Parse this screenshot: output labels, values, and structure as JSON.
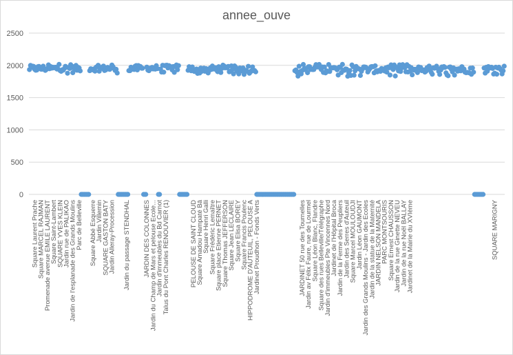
{
  "chart_data": {
    "type": "scatter",
    "title": "annee_ouve",
    "xlabel": "",
    "ylabel": "",
    "ylim": [
      0,
      2500
    ],
    "yticks": [
      0,
      500,
      1000,
      1500,
      2000,
      2500
    ],
    "grid": "horizontal",
    "legend": "none",
    "colors": {
      "marker": "#5b9bd5",
      "grid": "#d9d9d9",
      "text": "#595959"
    },
    "n_points": 450,
    "x_tick_labels": [
      {
        "i": 5,
        "label": "Square Laurent Prache"
      },
      {
        "i": 11,
        "label": "Square MARCEL RAJMAN"
      },
      {
        "i": 17,
        "label": "Promenade avenue EMILE LAURENT"
      },
      {
        "i": 23,
        "label": "Square Saint-Lambert"
      },
      {
        "i": 29,
        "label": "SQUARE YVES KLEIN"
      },
      {
        "i": 35,
        "label": "Jardin rue de PALIKAO"
      },
      {
        "i": 41,
        "label": "Jardin de l'esplanade des Grands Moulins"
      },
      {
        "i": 47,
        "label": "Parc de Belleville"
      },
      {
        "i": 60,
        "label": "Square Abbé Esquerre"
      },
      {
        "i": 66,
        "label": "Jardin Villemin"
      },
      {
        "i": 72,
        "label": "SQUARE GASTON BATY"
      },
      {
        "i": 78,
        "label": "Jardin Alleray-Procession"
      },
      {
        "i": 92,
        "label": "Jardin du passage STENDHAL"
      },
      {
        "i": 111,
        "label": "JARDIN DES COLONNES"
      },
      {
        "i": 117,
        "label": "Jardin du Champ de Mars et pelouse Ecole..."
      },
      {
        "i": 123,
        "label": "Jardin d'immeubles du Bd Carnot"
      },
      {
        "i": 129,
        "label": "Talus du Pont Charles RENOUVIER (1)"
      },
      {
        "i": 155,
        "label": "PELOUSE DE SAINT CLOUD"
      },
      {
        "i": 161,
        "label": "Square Amadou Hampaté Bâ"
      },
      {
        "i": 167,
        "label": "Square Henri Galli"
      },
      {
        "i": 173,
        "label": "Square Frédéric Lemaître"
      },
      {
        "i": 179,
        "label": "Square place Etienne PERNET"
      },
      {
        "i": 185,
        "label": "Square Thomas JEFFERSON"
      },
      {
        "i": 191,
        "label": "Square Jean LECLAIRE"
      },
      {
        "i": 197,
        "label": "Square Elisa BOREY"
      },
      {
        "i": 203,
        "label": "Square Francis Poulenc"
      },
      {
        "i": 209,
        "label": "HIPPODROME D'AUTEUIL, PELOUSE A"
      },
      {
        "i": 215,
        "label": "Jardinet Proudhon - Fonds Verts"
      },
      {
        "i": 258,
        "label": "JARDINET 50 rue des Tournelles"
      },
      {
        "i": 264,
        "label": "Jardin av Félix Faure, rue de Lourmel"
      },
      {
        "i": 270,
        "label": "Square Léon Blanc, Flandre"
      },
      {
        "i": 276,
        "label": "Square des rues Belleville/Télégraphe"
      },
      {
        "i": 282,
        "label": "Jardin d'immeubles Pte Vincennes Nord"
      },
      {
        "i": 288,
        "label": "Jardinet de l'Hôpital Broca"
      },
      {
        "i": 294,
        "label": "Jardin de la Ferme des Peupliers"
      },
      {
        "i": 300,
        "label": "Jardin des Serres d'Auteuil"
      },
      {
        "i": 306,
        "label": "Square Marcel MOULOUDJI"
      },
      {
        "i": 312,
        "label": "Jardin Léon GAUMONT"
      },
      {
        "i": 318,
        "label": "Jardin des Grands Moulins - Jardin des Ecoles"
      },
      {
        "i": 324,
        "label": "Jardin de la statue de la Maternité"
      },
      {
        "i": 330,
        "label": "JARDIN NELSON MANDELA"
      },
      {
        "i": 336,
        "label": "PARC MONTSOURIS"
      },
      {
        "i": 342,
        "label": "Square Ernest CHAUSSON"
      },
      {
        "i": 348,
        "label": "Jardin de la rue Ginette NEVEU"
      },
      {
        "i": 354,
        "label": "Jardin de la rue Noël BALLAY"
      },
      {
        "i": 360,
        "label": "Jardinet de la Mairie du XVIème"
      },
      {
        "i": 440,
        "label": "SQUARE MARIGNY"
      }
    ],
    "segments": [
      {
        "from": 0,
        "to": 48,
        "value_range": [
          1860,
          2015
        ]
      },
      {
        "from": 49,
        "to": 56,
        "value": 0
      },
      {
        "from": 57,
        "to": 83,
        "value_range": [
          1865,
          2010
        ]
      },
      {
        "from": 84,
        "to": 93,
        "value": 0
      },
      {
        "from": 94,
        "to": 107,
        "value_range": [
          1860,
          2015
        ]
      },
      {
        "from": 108,
        "to": 110,
        "value": 0
      },
      {
        "from": 111,
        "to": 121,
        "value_range": [
          1870,
          2015
        ]
      },
      {
        "from": 122,
        "to": 123,
        "value": 0
      },
      {
        "from": 124,
        "to": 141,
        "value_range": [
          1880,
          2015
        ]
      },
      {
        "from": 142,
        "to": 149,
        "value": 0
      },
      {
        "from": 150,
        "to": 214,
        "value_range": [
          1850,
          2010
        ]
      },
      {
        "from": 215,
        "to": 250,
        "value": 0
      },
      {
        "from": 251,
        "to": 420,
        "value_range": [
          1830,
          2015
        ]
      },
      {
        "from": 421,
        "to": 429,
        "value": 0
      },
      {
        "from": 430,
        "to": 449,
        "value_range": [
          1860,
          2010
        ]
      }
    ]
  }
}
